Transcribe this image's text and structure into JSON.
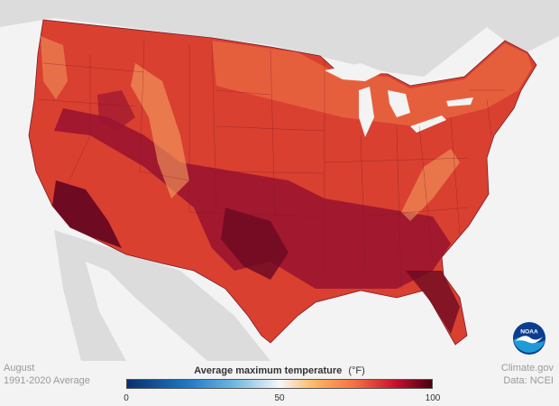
{
  "map": {
    "subject": "Average maximum temperature, August, contiguous United States",
    "region": "Contiguous United States",
    "legend_title": "Average maximum temperature",
    "legend_unit": "(°F)",
    "scale_min": 0,
    "scale_max": 100,
    "ticks": [
      "0",
      "50",
      "100"
    ],
    "tick_values": [
      0,
      50,
      100
    ],
    "color_stops": [
      {
        "value": 0,
        "color": "#08306b"
      },
      {
        "value": 20,
        "color": "#1f78c8"
      },
      {
        "value": 35,
        "color": "#6fb7e0"
      },
      {
        "value": 50,
        "color": "#f7f7f7"
      },
      {
        "value": 62,
        "color": "#fdb462"
      },
      {
        "value": 75,
        "color": "#f46d43"
      },
      {
        "value": 88,
        "color": "#c8102e"
      },
      {
        "value": 100,
        "color": "#4a0010"
      }
    ],
    "colors": {
      "land_outside": "#dcdcdc",
      "water": "#f3f3f3",
      "base_fill": "#d94030",
      "hot_fill": "#9b1430",
      "hottest_fill": "#6e0a22",
      "cool_fill": "#f07848",
      "mountain_fill": "#f5a060",
      "border": "#7a1a24"
    }
  },
  "footer": {
    "left_line1": "August",
    "left_line2": "1991-2020 Average",
    "right_line1": "Climate.gov",
    "right_line2": "Data: NCEI"
  },
  "logo": {
    "text": "NOAA",
    "name": "noaa-logo",
    "colors": {
      "sky": "#0a3d8f",
      "sea": "#1e9bd7",
      "bird": "#ffffff"
    }
  }
}
